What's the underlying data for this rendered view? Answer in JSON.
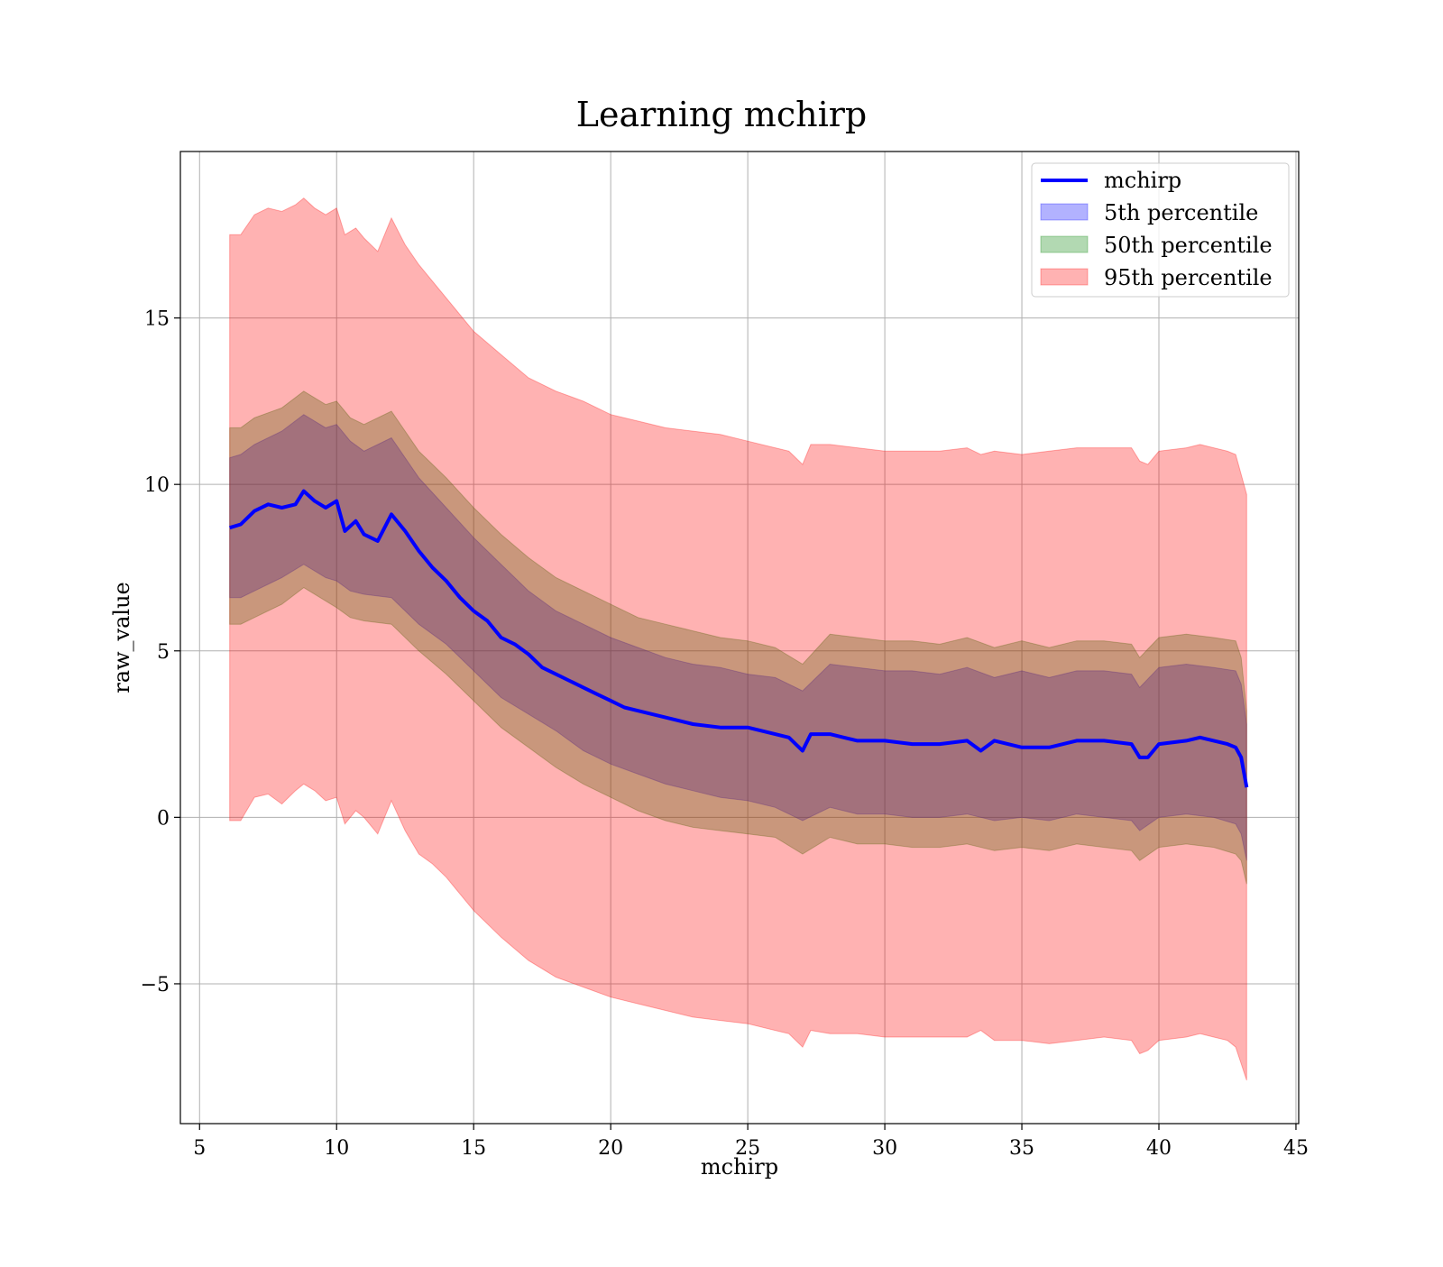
{
  "chart_data": {
    "type": "area",
    "title": "Learning mchirp",
    "xlabel": "mchirp",
    "ylabel": "raw_value",
    "xlim": [
      4.3,
      45.1
    ],
    "ylim": [
      -9.2,
      20.0
    ],
    "xticks": [
      5,
      10,
      15,
      20,
      25,
      30,
      35,
      40,
      45
    ],
    "yticks": [
      -5,
      0,
      5,
      10,
      15
    ],
    "ytick_labels": [
      "−5",
      "0",
      "5",
      "10",
      "15"
    ],
    "grid": true,
    "legend_position": "top-right",
    "colors": {
      "line": "#0000ff",
      "band_5th": "#0000ff",
      "band_50th": "#008000",
      "band_95th": "#ff0000"
    },
    "series": [
      {
        "name": "mchirp",
        "kind": "line",
        "x": [
          6.1,
          6.5,
          7.0,
          7.5,
          8.0,
          8.5,
          8.8,
          9.2,
          9.6,
          10.0,
          10.3,
          10.7,
          11.0,
          11.5,
          12.0,
          12.5,
          13.0,
          13.5,
          14.0,
          14.5,
          15.0,
          15.5,
          16.0,
          16.5,
          17.0,
          17.5,
          18.0,
          18.5,
          19.0,
          19.5,
          20.0,
          20.5,
          21.0,
          22.0,
          23.0,
          24.0,
          25.0,
          26.0,
          26.5,
          27.0,
          27.3,
          27.7,
          28.0,
          28.5,
          29.0,
          30.0,
          31.0,
          32.0,
          33.0,
          33.5,
          34.0,
          35.0,
          36.0,
          37.0,
          38.0,
          39.0,
          39.3,
          39.6,
          40.0,
          41.0,
          41.5,
          42.0,
          42.5,
          42.8,
          43.0,
          43.2
        ],
        "y": [
          8.7,
          8.8,
          9.2,
          9.4,
          9.3,
          9.4,
          9.8,
          9.5,
          9.3,
          9.5,
          8.6,
          8.9,
          8.5,
          8.3,
          9.1,
          8.6,
          8.0,
          7.5,
          7.1,
          6.6,
          6.2,
          5.9,
          5.4,
          5.2,
          4.9,
          4.5,
          4.3,
          4.1,
          3.9,
          3.7,
          3.5,
          3.3,
          3.2,
          3.0,
          2.8,
          2.7,
          2.7,
          2.5,
          2.4,
          2.0,
          2.5,
          2.5,
          2.5,
          2.4,
          2.3,
          2.3,
          2.2,
          2.2,
          2.3,
          2.0,
          2.3,
          2.1,
          2.1,
          2.3,
          2.3,
          2.2,
          1.8,
          1.8,
          2.2,
          2.3,
          2.4,
          2.3,
          2.2,
          2.1,
          1.8,
          0.9
        ]
      },
      {
        "name": "5th percentile",
        "kind": "band",
        "x": [
          6.1,
          6.5,
          7.0,
          8.0,
          8.8,
          9.6,
          10.0,
          10.5,
          11.0,
          12.0,
          13.0,
          14.0,
          15.0,
          16.0,
          17.0,
          18.0,
          19.0,
          20.0,
          21.0,
          22.0,
          23.0,
          24.0,
          25.0,
          26.0,
          27.0,
          28.0,
          29.0,
          30.0,
          31.0,
          32.0,
          33.0,
          34.0,
          35.0,
          36.0,
          37.0,
          38.0,
          39.0,
          39.3,
          40.0,
          41.0,
          42.0,
          42.8,
          43.0,
          43.2
        ],
        "lower": [
          6.6,
          6.6,
          6.8,
          7.2,
          7.6,
          7.2,
          7.1,
          6.8,
          6.7,
          6.6,
          5.8,
          5.2,
          4.4,
          3.6,
          3.1,
          2.6,
          2.0,
          1.6,
          1.3,
          1.0,
          0.8,
          0.6,
          0.5,
          0.3,
          -0.1,
          0.3,
          0.1,
          0.1,
          0.0,
          0.0,
          0.1,
          -0.1,
          0.0,
          -0.1,
          0.1,
          0.0,
          -0.1,
          -0.4,
          0.0,
          0.1,
          0.0,
          -0.2,
          -0.5,
          -1.3
        ],
        "upper": [
          10.8,
          10.9,
          11.2,
          11.6,
          12.1,
          11.7,
          11.8,
          11.3,
          11.0,
          11.4,
          10.2,
          9.3,
          8.4,
          7.6,
          6.8,
          6.2,
          5.8,
          5.4,
          5.1,
          4.8,
          4.6,
          4.5,
          4.3,
          4.2,
          3.8,
          4.6,
          4.5,
          4.4,
          4.4,
          4.3,
          4.5,
          4.2,
          4.4,
          4.2,
          4.4,
          4.4,
          4.3,
          3.9,
          4.5,
          4.6,
          4.5,
          4.4,
          4.0,
          2.8
        ]
      },
      {
        "name": "50th percentile",
        "kind": "band",
        "x": [
          6.1,
          6.5,
          7.0,
          8.0,
          8.8,
          9.6,
          10.0,
          10.5,
          11.0,
          12.0,
          13.0,
          14.0,
          15.0,
          16.0,
          17.0,
          18.0,
          19.0,
          20.0,
          21.0,
          22.0,
          23.0,
          24.0,
          25.0,
          26.0,
          27.0,
          28.0,
          29.0,
          30.0,
          31.0,
          32.0,
          33.0,
          34.0,
          35.0,
          36.0,
          37.0,
          38.0,
          39.0,
          39.3,
          40.0,
          41.0,
          42.0,
          42.8,
          43.0,
          43.2
        ],
        "lower": [
          5.8,
          5.8,
          6.0,
          6.4,
          6.9,
          6.5,
          6.3,
          6.0,
          5.9,
          5.8,
          5.0,
          4.3,
          3.5,
          2.7,
          2.1,
          1.5,
          1.0,
          0.6,
          0.2,
          -0.1,
          -0.3,
          -0.4,
          -0.5,
          -0.6,
          -1.1,
          -0.6,
          -0.8,
          -0.8,
          -0.9,
          -0.9,
          -0.8,
          -1.0,
          -0.9,
          -1.0,
          -0.8,
          -0.9,
          -1.0,
          -1.3,
          -0.9,
          -0.8,
          -0.9,
          -1.1,
          -1.3,
          -2.0
        ],
        "upper": [
          11.7,
          11.7,
          12.0,
          12.3,
          12.8,
          12.4,
          12.5,
          12.0,
          11.8,
          12.2,
          11.0,
          10.2,
          9.3,
          8.5,
          7.8,
          7.2,
          6.8,
          6.4,
          6.0,
          5.8,
          5.6,
          5.4,
          5.3,
          5.1,
          4.6,
          5.5,
          5.4,
          5.3,
          5.3,
          5.2,
          5.4,
          5.1,
          5.3,
          5.1,
          5.3,
          5.3,
          5.2,
          4.8,
          5.4,
          5.5,
          5.4,
          5.3,
          4.8,
          3.2
        ]
      },
      {
        "name": "95th percentile",
        "kind": "band",
        "x": [
          6.1,
          6.5,
          7.0,
          7.5,
          8.0,
          8.5,
          8.8,
          9.2,
          9.6,
          10.0,
          10.3,
          10.7,
          11.0,
          11.5,
          12.0,
          12.5,
          13.0,
          13.5,
          14.0,
          14.5,
          15.0,
          16.0,
          17.0,
          18.0,
          19.0,
          20.0,
          21.0,
          22.0,
          23.0,
          24.0,
          25.0,
          26.0,
          26.5,
          27.0,
          27.3,
          28.0,
          29.0,
          30.0,
          31.0,
          32.0,
          33.0,
          33.5,
          34.0,
          35.0,
          36.0,
          37.0,
          38.0,
          39.0,
          39.3,
          39.6,
          40.0,
          41.0,
          41.5,
          42.0,
          42.5,
          42.8,
          43.0,
          43.2
        ],
        "lower": [
          -0.1,
          -0.1,
          0.6,
          0.7,
          0.4,
          0.8,
          1.0,
          0.8,
          0.5,
          0.6,
          -0.2,
          0.2,
          0.0,
          -0.5,
          0.5,
          -0.4,
          -1.1,
          -1.4,
          -1.8,
          -2.3,
          -2.8,
          -3.6,
          -4.3,
          -4.8,
          -5.1,
          -5.4,
          -5.6,
          -5.8,
          -6.0,
          -6.1,
          -6.2,
          -6.4,
          -6.5,
          -6.9,
          -6.4,
          -6.5,
          -6.5,
          -6.6,
          -6.6,
          -6.6,
          -6.6,
          -6.4,
          -6.7,
          -6.7,
          -6.8,
          -6.7,
          -6.6,
          -6.7,
          -7.1,
          -7.0,
          -6.7,
          -6.6,
          -6.5,
          -6.6,
          -6.7,
          -6.9,
          -7.4,
          -7.9
        ],
        "upper": [
          17.5,
          17.5,
          18.1,
          18.3,
          18.2,
          18.4,
          18.6,
          18.3,
          18.1,
          18.3,
          17.5,
          17.7,
          17.4,
          17.0,
          18.0,
          17.2,
          16.6,
          16.1,
          15.6,
          15.1,
          14.6,
          13.9,
          13.2,
          12.8,
          12.5,
          12.1,
          11.9,
          11.7,
          11.6,
          11.5,
          11.3,
          11.1,
          11.0,
          10.6,
          11.2,
          11.2,
          11.1,
          11.0,
          11.0,
          11.0,
          11.1,
          10.9,
          11.0,
          10.9,
          11.0,
          11.1,
          11.1,
          11.1,
          10.7,
          10.6,
          11.0,
          11.1,
          11.2,
          11.1,
          11.0,
          10.9,
          10.3,
          9.7
        ]
      }
    ]
  }
}
